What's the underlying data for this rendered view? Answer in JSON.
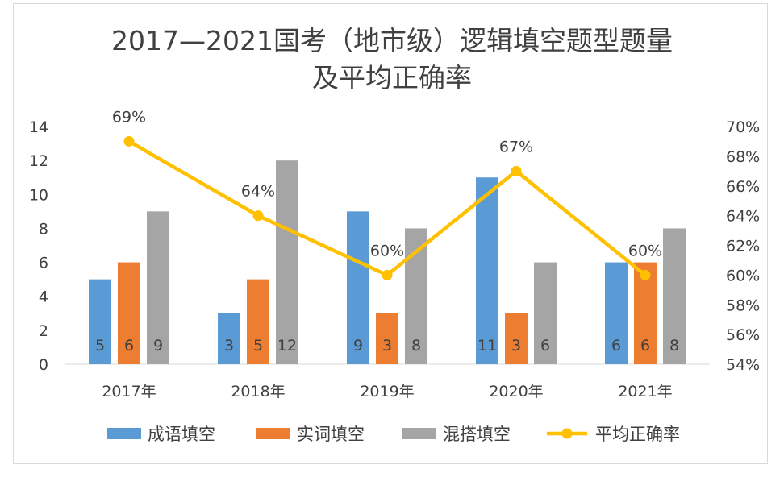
{
  "chart_data": {
    "type": "bar",
    "title_line1": "2017—2021国考（地市级）逻辑填空题型题量",
    "title_line2": "及平均正确率",
    "categories": [
      "2017年",
      "2018年",
      "2019年",
      "2020年",
      "2021年"
    ],
    "series": [
      {
        "name": "成语填空",
        "type": "bar",
        "axis": "left",
        "color": "#5b9bd5",
        "values": [
          5,
          3,
          9,
          11,
          6
        ]
      },
      {
        "name": "实词填空",
        "type": "bar",
        "axis": "left",
        "color": "#ed7d31",
        "values": [
          6,
          5,
          3,
          3,
          6
        ]
      },
      {
        "name": "混搭填空",
        "type": "bar",
        "axis": "left",
        "color": "#a5a5a5",
        "values": [
          9,
          12,
          8,
          6,
          8
        ]
      },
      {
        "name": "平均正确率",
        "type": "line",
        "axis": "right",
        "color": "#ffc000",
        "values": [
          69,
          64,
          60,
          67,
          60
        ],
        "labels": [
          "69%",
          "64%",
          "60%",
          "67%",
          "60%"
        ]
      }
    ],
    "y_left": {
      "min": 0,
      "max": 14,
      "ticks": [
        "0",
        "2",
        "4",
        "6",
        "8",
        "10",
        "12",
        "14"
      ]
    },
    "y_right": {
      "min": 54,
      "max": 70,
      "ticks": [
        "54%",
        "56%",
        "58%",
        "60%",
        "62%",
        "64%",
        "66%",
        "68%",
        "70%"
      ]
    },
    "legend_position": "bottom",
    "grid": false
  }
}
